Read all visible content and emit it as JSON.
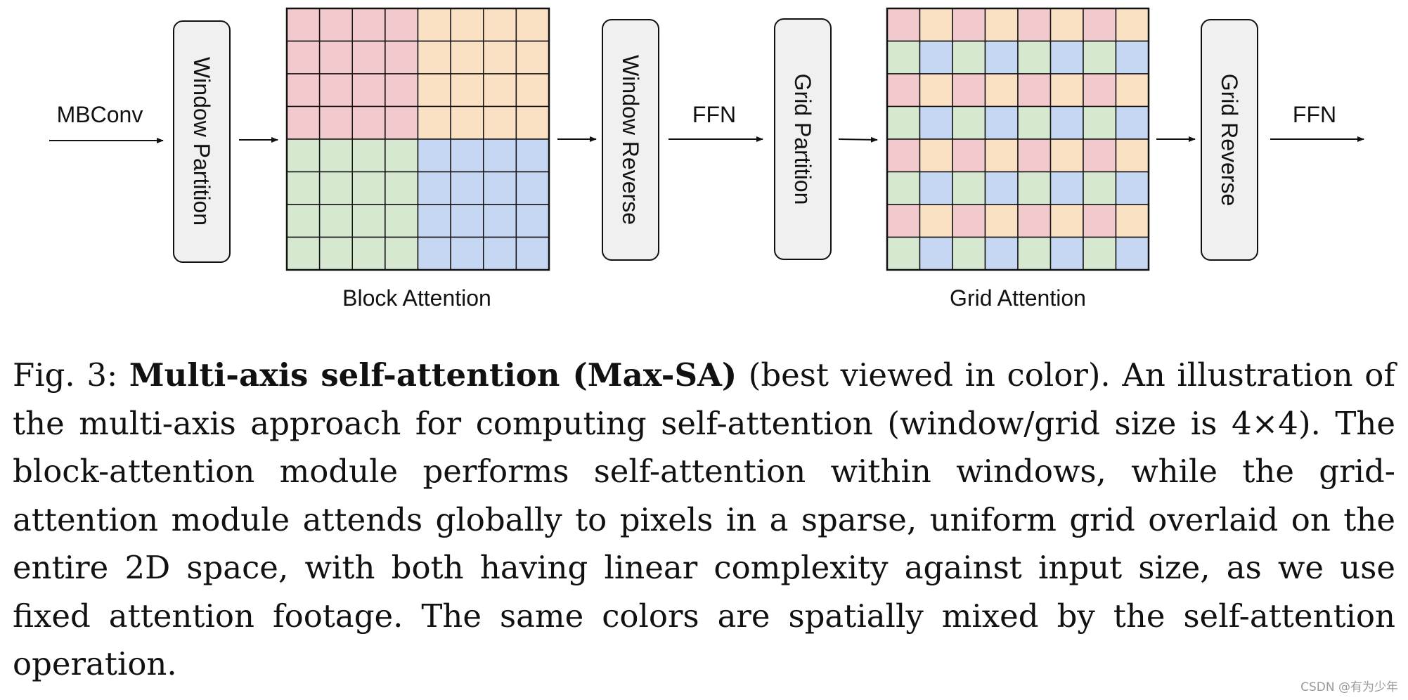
{
  "figure": {
    "inputs": {
      "mbconv": "MBConv",
      "ffn_1": "FFN",
      "ffn_2": "FFN"
    },
    "ops": {
      "window_partition": "Window Partition",
      "window_reverse": "Window Reverse",
      "grid_partition": "Grid Partition",
      "grid_reverse": "Grid Reverse"
    },
    "block_attention": {
      "label": "Block Attention",
      "rows": 8,
      "cols": 8,
      "window_size": 4,
      "colors": [
        "#f2c9cc",
        "#fbe1c3",
        "#d6e8d0",
        "#c6d7f4"
      ]
    },
    "grid_attention": {
      "label": "Grid Attention",
      "rows": 8,
      "cols": 8,
      "grid_size": 4,
      "colors": [
        "#f2c9cc",
        "#fbe1c3",
        "#d6e8d0",
        "#c6d7f4"
      ]
    },
    "op_box_fill": "#f0f0f0"
  },
  "caption": {
    "label": "Fig. 3:",
    "title": "Multi-axis self-attention (Max-SA)",
    "body": " (best viewed in color). An illustration of the multi-axis approach for computing self-attention (window/grid size is 4×4). The block-attention module performs self-attention within windows, while the grid-attention module attends globally to pixels in a sparse, uniform grid overlaid on the entire 2D space, with both having linear complexity against input size, as we use fixed attention footage. The same colors are spatially mixed by the self-attention operation."
  },
  "watermark": "CSDN @有为少年"
}
